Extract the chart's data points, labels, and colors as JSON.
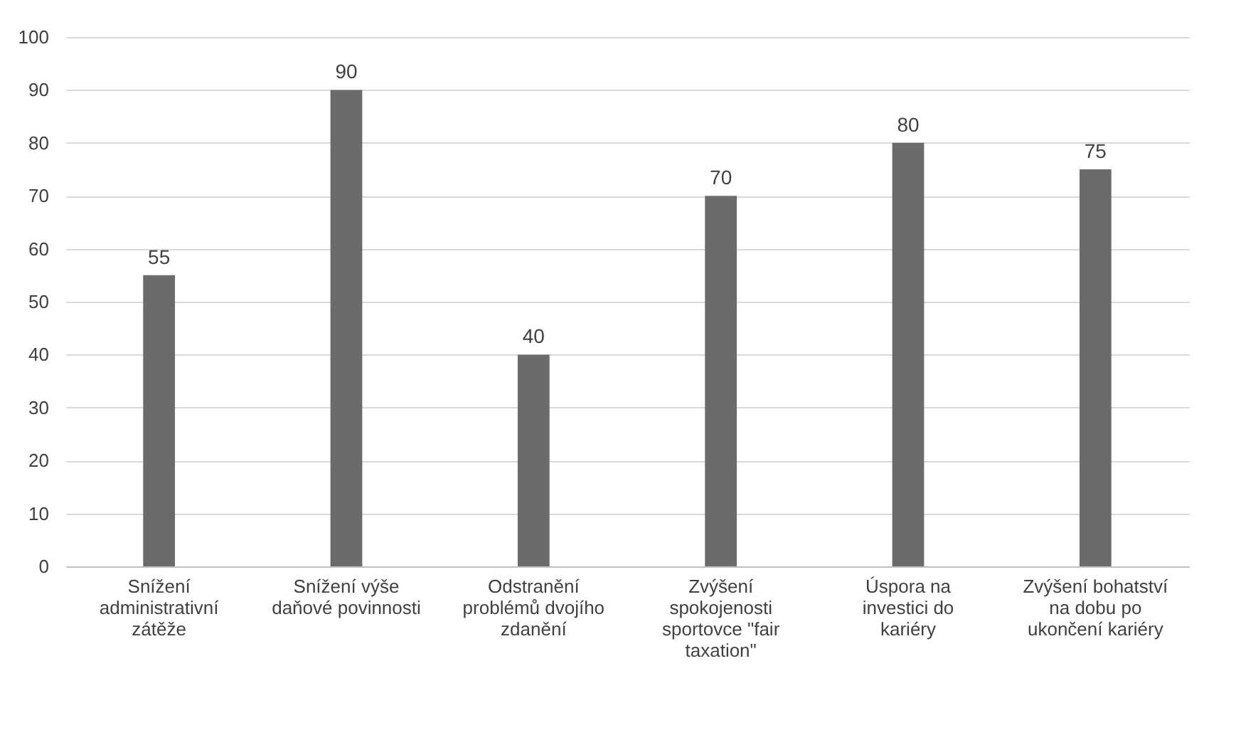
{
  "chart_data": {
    "type": "bar",
    "categories": [
      "Snížení administrativní zátěže",
      "Snížení výše daňové povinnosti",
      "Odstranění problémů dvojího zdanění",
      "Zvýšení spokojenosti sportovce \"fair taxation\"",
      "Úspora na investici do kariéry",
      "Zvýšení bohatství na dobu po ukončení kariéry"
    ],
    "values": [
      55,
      90,
      40,
      70,
      80,
      75
    ],
    "color": "#6b6b6e",
    "ylim": [
      0,
      100
    ],
    "yticks": [
      0,
      10,
      20,
      30,
      40,
      50,
      60,
      70,
      80,
      90,
      100
    ],
    "grid": "y",
    "data_labels": true
  }
}
